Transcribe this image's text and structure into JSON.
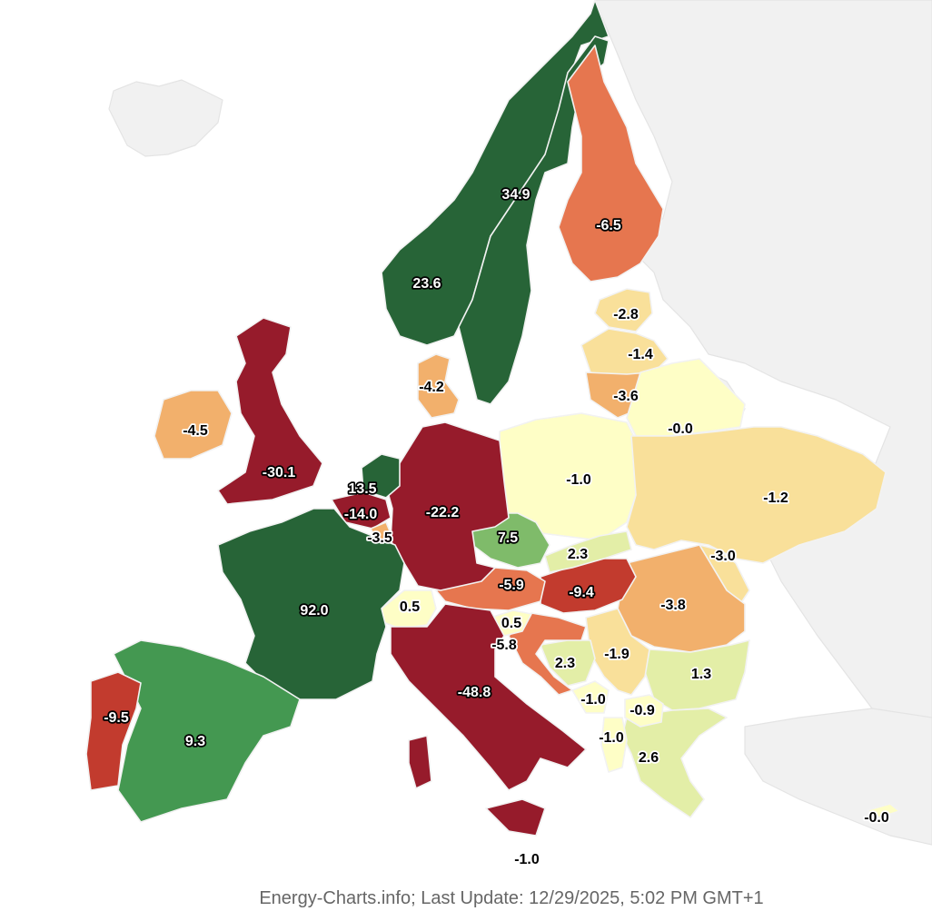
{
  "footer": {
    "source": "Energy-Charts.info; Last Update: 12/29/2025, 5:02 PM GMT+1"
  },
  "map": {
    "countries": [
      {
        "id": "france",
        "value": "92.0",
        "color": "#276437",
        "label_style": "dark"
      },
      {
        "id": "sweden",
        "value": "34.9",
        "color": "#276437",
        "label_style": "dark"
      },
      {
        "id": "norway",
        "value": "23.6",
        "color": "#276437",
        "label_style": "dark"
      },
      {
        "id": "netherlands",
        "value": "13.5",
        "color": "#276437",
        "label_style": "dark"
      },
      {
        "id": "spain",
        "value": "9.3",
        "color": "#449851",
        "label_style": "dark"
      },
      {
        "id": "czechia",
        "value": "7.5",
        "color": "#7fbb6a",
        "label_style": "dark"
      },
      {
        "id": "greece",
        "value": "2.6",
        "color": "#e3eea7",
        "label_style": "light"
      },
      {
        "id": "slovakia",
        "value": "2.3",
        "color": "#e3eea7",
        "label_style": "light"
      },
      {
        "id": "bosnia",
        "value": "2.3",
        "color": "#e3eea7",
        "label_style": "light"
      },
      {
        "id": "bulgaria",
        "value": "1.3",
        "color": "#e3eea7",
        "label_style": "light"
      },
      {
        "id": "switzerland",
        "value": "0.5",
        "color": "#fefec6",
        "label_style": "light"
      },
      {
        "id": "slovenia",
        "value": "0.5",
        "color": "#fefec6",
        "label_style": "light"
      },
      {
        "id": "belarus",
        "value": "-0.0",
        "color": "#fefec6",
        "label_style": "light"
      },
      {
        "id": "cyprus",
        "value": "-0.0",
        "color": "#fefec6",
        "label_style": "light"
      },
      {
        "id": "north-macedonia",
        "value": "-0.9",
        "color": "#fefec6",
        "label_style": "light"
      },
      {
        "id": "poland",
        "value": "-1.0",
        "color": "#fefec6",
        "label_style": "light"
      },
      {
        "id": "montenegro",
        "value": "-1.0",
        "color": "#fefec6",
        "label_style": "light"
      },
      {
        "id": "albania",
        "value": "-1.0",
        "color": "#fefec6",
        "label_style": "light"
      },
      {
        "id": "malta",
        "value": "-1.0",
        "color": "#fefec6",
        "label_style": "light"
      },
      {
        "id": "ukraine",
        "value": "-1.2",
        "color": "#f9e09a",
        "label_style": "light"
      },
      {
        "id": "latvia",
        "value": "-1.4",
        "color": "#f9e09a",
        "label_style": "light"
      },
      {
        "id": "serbia",
        "value": "-1.9",
        "color": "#f9e09a",
        "label_style": "light"
      },
      {
        "id": "estonia",
        "value": "-2.8",
        "color": "#f9e09a",
        "label_style": "light"
      },
      {
        "id": "moldova",
        "value": "-3.0",
        "color": "#f9e09a",
        "label_style": "light"
      },
      {
        "id": "luxembourg",
        "value": "-3.5",
        "color": "#f2b06c",
        "label_style": "light"
      },
      {
        "id": "lithuania",
        "value": "-3.6",
        "color": "#f2b06c",
        "label_style": "light"
      },
      {
        "id": "romania",
        "value": "-3.8",
        "color": "#f2b06c",
        "label_style": "light"
      },
      {
        "id": "denmark",
        "value": "-4.2",
        "color": "#f2b06c",
        "label_style": "light"
      },
      {
        "id": "ireland",
        "value": "-4.5",
        "color": "#f2b06c",
        "label_style": "light"
      },
      {
        "id": "croatia",
        "value": "-5.8",
        "color": "#e6764f",
        "label_style": "light"
      },
      {
        "id": "austria",
        "value": "-5.9",
        "color": "#e6764f",
        "label_style": "dark"
      },
      {
        "id": "finland",
        "value": "-6.5",
        "color": "#e6764f",
        "label_style": "dark"
      },
      {
        "id": "hungary",
        "value": "-9.4",
        "color": "#c23b2e",
        "label_style": "dark"
      },
      {
        "id": "portugal",
        "value": "-9.5",
        "color": "#c23b2e",
        "label_style": "dark"
      },
      {
        "id": "belgium",
        "value": "-14.0",
        "color": "#961b2b",
        "label_style": "dark"
      },
      {
        "id": "germany",
        "value": "-22.2",
        "color": "#961b2b",
        "label_style": "dark"
      },
      {
        "id": "united-kingdom",
        "value": "-30.1",
        "color": "#961b2b",
        "label_style": "dark"
      },
      {
        "id": "italy",
        "value": "-48.8",
        "color": "#961b2b",
        "label_style": "dark"
      }
    ]
  }
}
